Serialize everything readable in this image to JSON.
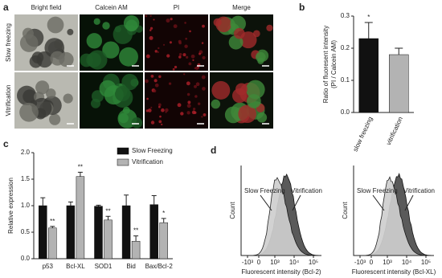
{
  "figure": {
    "panel_labels": [
      "a",
      "b",
      "c",
      "d"
    ],
    "panel_a": {
      "columns": [
        "Bright field",
        "Calcein AM",
        "PI",
        "Merge"
      ],
      "rows": [
        "Slow freezing",
        "Vitrification"
      ]
    },
    "panel_d": {
      "y_label": "Count",
      "x_ticks": [
        "-10³",
        "0",
        "10³",
        "10⁴",
        "10⁵"
      ],
      "plots": [
        {
          "x_label": "Fluorescent intensity (Bcl-2)",
          "annotations": [
            "Slow Freezing",
            "Vitrification"
          ]
        },
        {
          "x_label": "Fluorescent intensity (Bcl-XL)",
          "annotations": [
            "Slow Freezing",
            "Vitrification"
          ]
        }
      ]
    }
  },
  "chart_data": [
    {
      "type": "bar",
      "y_label": [
        "Ratio of  fluoresent intensity",
        "(PI / Calcein AM)"
      ],
      "categories": [
        "slow freezing",
        "vitrification"
      ],
      "values": [
        0.23,
        0.18
      ],
      "errors": [
        0.05,
        0.02
      ],
      "colors": [
        "#111111",
        "#b3b3b3"
      ],
      "annotations": [
        {
          "category": "slow freezing",
          "text": "*"
        }
      ],
      "ylim": [
        0,
        0.3
      ],
      "yticks": [
        {
          "value": 0,
          "label": "0.0"
        },
        0.1,
        0.2,
        0.3
      ]
    },
    {
      "type": "grouped_bar",
      "y_label": "Relative expression",
      "categories": [
        "p53",
        "Bcl-XL",
        "SOD1",
        "Bid",
        "Bax/Bcl-2"
      ],
      "series": [
        {
          "name": "Slow Freezing",
          "color": "#111111",
          "values": [
            1.0,
            1.0,
            0.99,
            1.0,
            1.02
          ],
          "errors": [
            0.15,
            0.07,
            0.02,
            0.2,
            0.17
          ]
        },
        {
          "name": "Vitrification",
          "color": "#b3b3b3",
          "values": [
            0.58,
            1.55,
            0.73,
            0.33,
            0.68
          ],
          "errors": [
            0.03,
            0.08,
            0.07,
            0.1,
            0.08
          ],
          "labels": [
            "**",
            "**",
            "**",
            "**",
            "*"
          ]
        }
      ],
      "ylim": [
        0,
        2
      ],
      "yticks": [
        {
          "value": 0,
          "label": "0.0"
        },
        0.5,
        {
          "value": 1,
          "label": "1.0"
        },
        1.5,
        {
          "value": 2,
          "label": "2.0"
        }
      ],
      "legend": "top-right"
    }
  ]
}
